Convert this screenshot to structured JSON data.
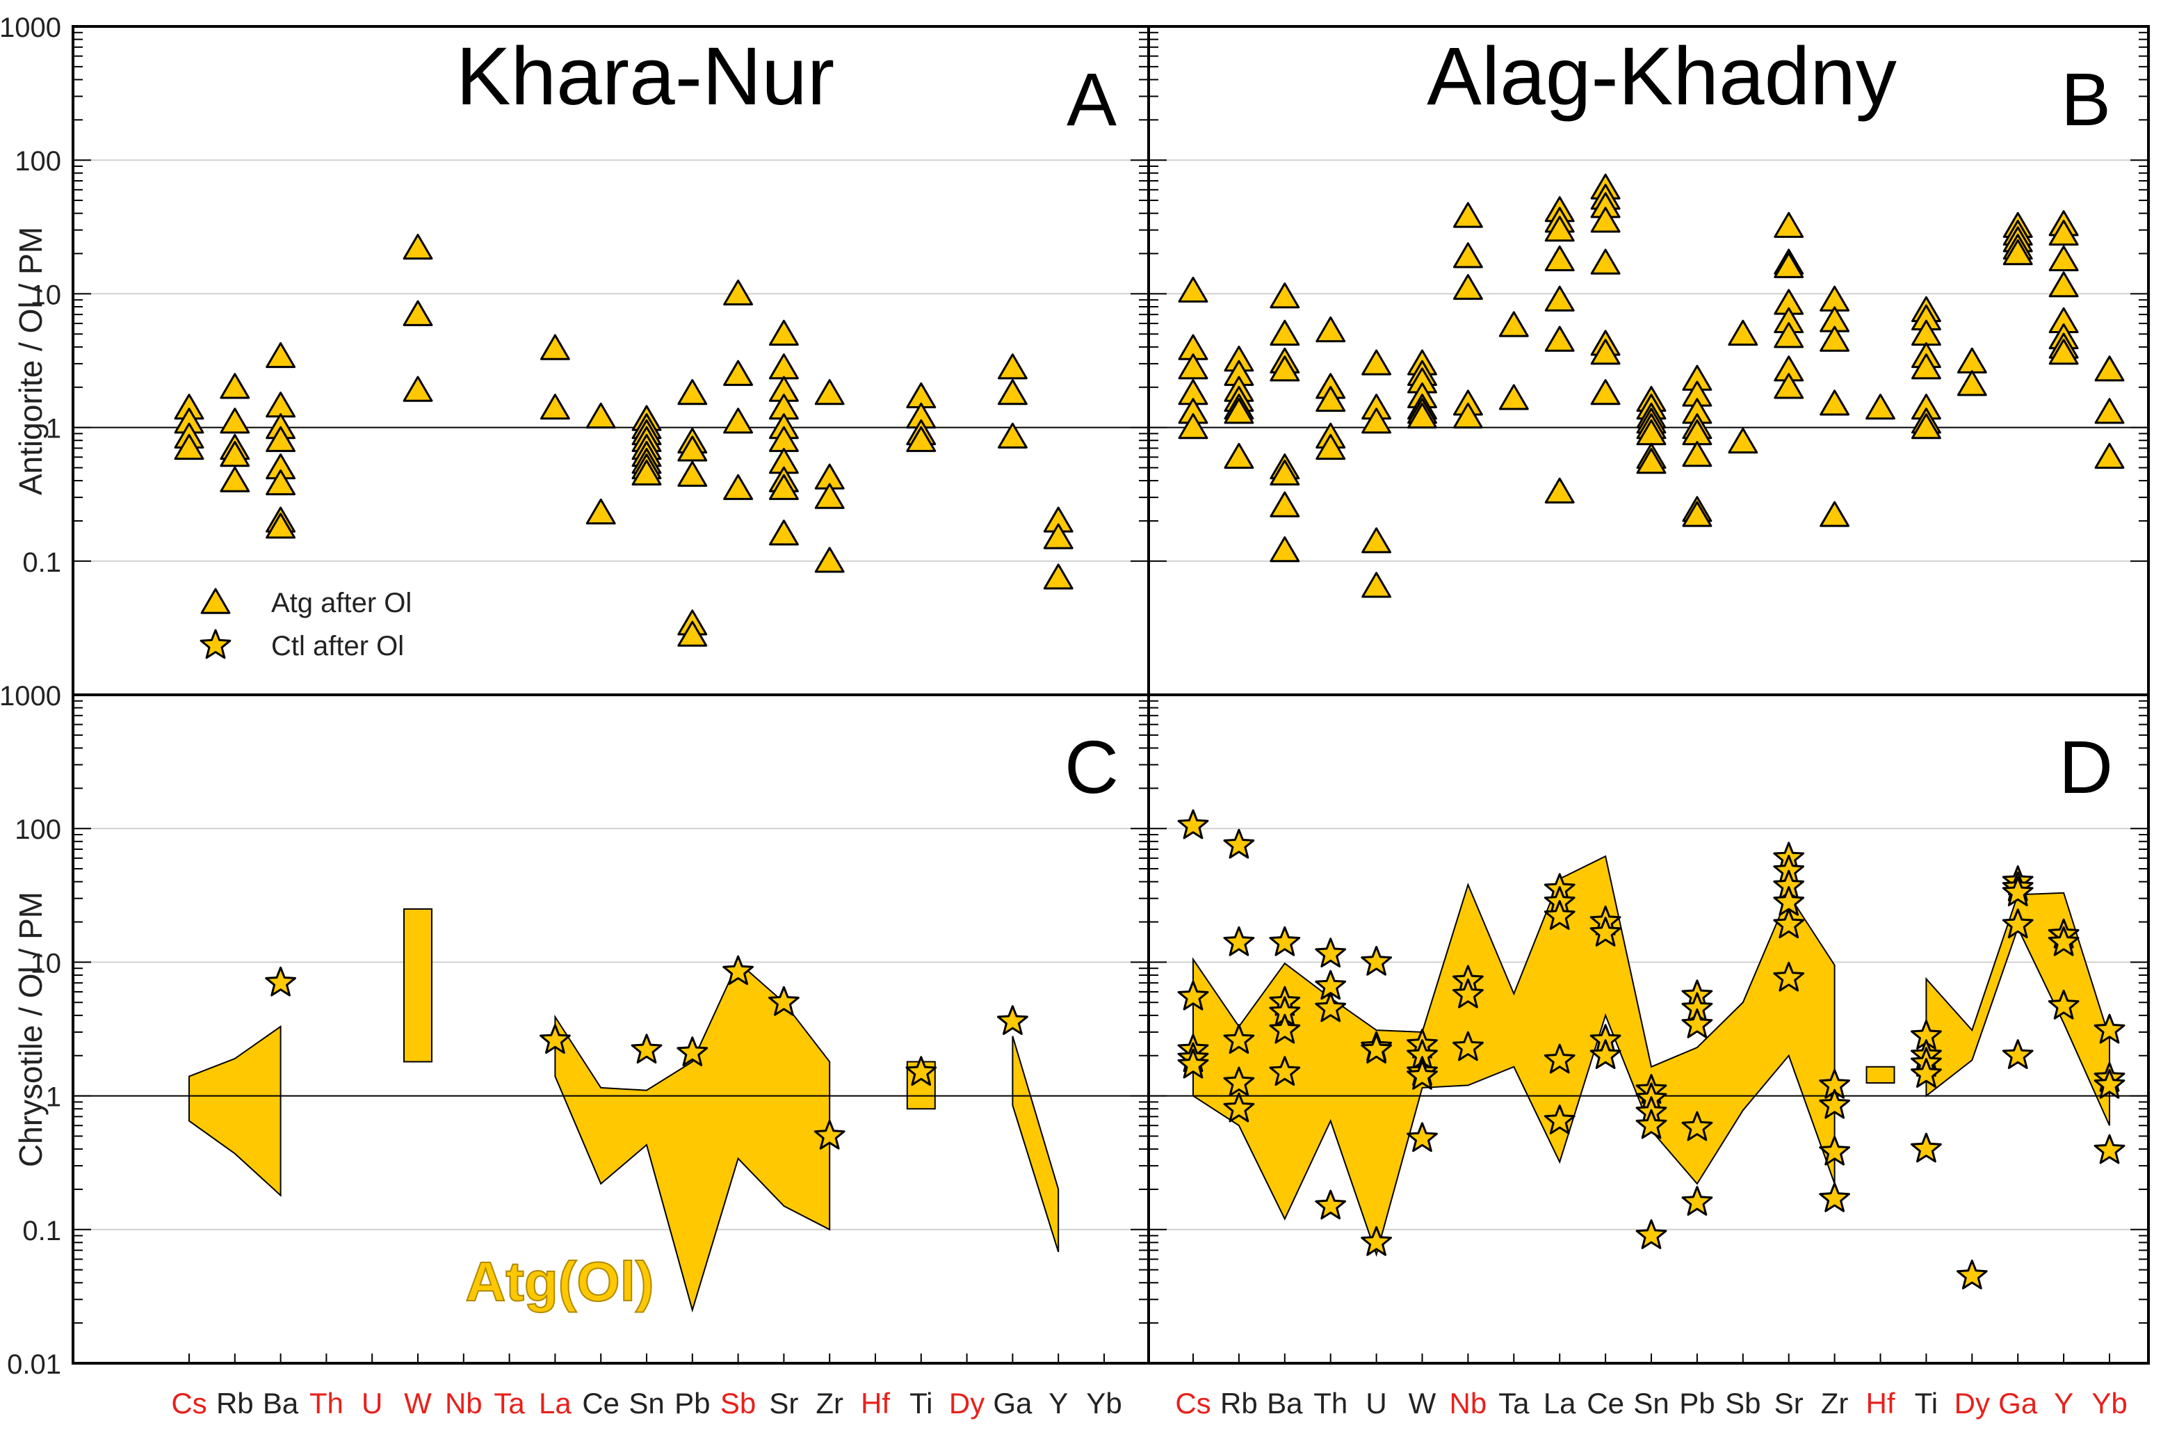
{
  "colors": {
    "marker_fill": "#FFC800",
    "marker_stroke": "#000000",
    "envelope_fill": "#FFC800",
    "envelope_stroke": "#000000",
    "red_label": "#E8201B",
    "black_label": "#222222",
    "grid": "#D0D0D0"
  },
  "y_ticks_top": [
    "1000",
    "100",
    "10",
    "1",
    "0.1"
  ],
  "y_ticks_bottom": [
    "1000",
    "100",
    "10",
    "1",
    "0.1",
    "0.01"
  ],
  "chart_data": [
    {
      "panel": "A",
      "type": "scatter",
      "title": "Khara-Nur",
      "ylabel": "Antigorite / Ol / PM",
      "yscale": "log",
      "ylim": [
        0.01,
        1000
      ],
      "categories": [
        "Cs",
        "Rb",
        "Ba",
        "Th",
        "U",
        "W",
        "Nb",
        "Ta",
        "La",
        "Ce",
        "Sn",
        "Pb",
        "Sb",
        "Sr",
        "Zr",
        "Hf",
        "Ti",
        "Dy",
        "Ga",
        "Y",
        "Yb"
      ],
      "legend": [
        {
          "label": "Atg after Ol",
          "marker": "triangle"
        },
        {
          "label": "Ctl after Ol",
          "marker": "star"
        }
      ],
      "legend_position": "bottom-left",
      "series": [
        {
          "marker": "triangle",
          "points": {
            "Cs": [
              1.4,
              1.1,
              0.85,
              0.7
            ],
            "Rb": [
              2.0,
              1.1,
              0.7,
              0.62,
              0.4
            ],
            "Ba": [
              3.4,
              1.45,
              1.0,
              0.8,
              0.5,
              0.38,
              0.2,
              0.18
            ],
            "W": [
              22,
              7,
              1.9
            ],
            "La": [
              3.9,
              1.4
            ],
            "Ce": [
              1.2,
              0.23
            ],
            "Sn": [
              1.15,
              1.0,
              0.9,
              0.8,
              0.7,
              0.62,
              0.55,
              0.5,
              0.45
            ],
            "Pb": [
              1.8,
              0.78,
              0.68,
              0.44,
              0.034,
              0.028
            ],
            "Sb": [
              10,
              2.5,
              1.1,
              0.35
            ],
            "Sr": [
              5.0,
              2.8,
              1.9,
              1.4,
              1.0,
              0.8,
              0.55,
              0.4,
              0.35,
              0.16
            ],
            "Zr": [
              1.8,
              0.42,
              0.3,
              0.1
            ],
            "Ti": [
              1.7,
              1.2,
              0.9,
              0.8
            ],
            "Ga": [
              2.8,
              1.8,
              0.85
            ],
            "Y": [
              0.2,
              0.15,
              0.075
            ]
          }
        }
      ]
    },
    {
      "panel": "B",
      "type": "scatter",
      "title": "Alag-Khadny",
      "yscale": "log",
      "ylim": [
        0.01,
        1000
      ],
      "categories": [
        "Cs",
        "Rb",
        "Ba",
        "Th",
        "U",
        "W",
        "Nb",
        "Ta",
        "La",
        "Ce",
        "Sn",
        "Pb",
        "Sb",
        "Sr",
        "Zr",
        "Hf",
        "Ti",
        "Dy",
        "Ga",
        "Y",
        "Yb"
      ],
      "series": [
        {
          "marker": "triangle",
          "points": {
            "Cs": [
              10.5,
              3.9,
              2.8,
              1.8,
              1.3,
              1.0
            ],
            "Rb": [
              3.2,
              2.5,
              1.9,
              1.6,
              1.4,
              1.3,
              0.6
            ],
            "Ba": [
              9.5,
              5.0,
              3.1,
              2.7,
              0.5,
              0.45,
              0.26,
              0.12
            ],
            "Th": [
              5.3,
              2.0,
              1.6,
              0.85,
              0.7
            ],
            "U": [
              3.0,
              1.4,
              1.1,
              0.14,
              0.065
            ],
            "W": [
              3.0,
              2.5,
              2.2,
              1.7,
              1.4,
              1.3,
              1.2
            ],
            "Nb": [
              38,
              19,
              11,
              1.5,
              1.2
            ],
            "Ta": [
              5.8,
              1.65
            ],
            "La": [
              42,
              35,
              30,
              18,
              9,
              4.5,
              0.33
            ],
            "Ce": [
              62,
              52,
              45,
              35,
              17,
              4.2,
              3.6,
              1.8
            ],
            "Sn": [
              1.6,
              1.4,
              1.2,
              1.1,
              1.0,
              0.9,
              0.6,
              0.55
            ],
            "Pb": [
              2.3,
              1.75,
              1.3,
              1.0,
              0.9,
              0.62,
              0.24,
              0.22
            ],
            "Sb": [
              5.0,
              0.78
            ],
            "Sr": [
              32,
              17,
              16,
              8.5,
              6.2,
              4.8,
              2.7,
              2.0
            ],
            "Zr": [
              9.0,
              6.3,
              4.5,
              1.5,
              0.22
            ],
            "Hf": [
              1.4
            ],
            "Ti": [
              7.5,
              6.5,
              5.0,
              3.4,
              2.8,
              1.4,
              1.1,
              1.0
            ],
            "Dy": [
              3.1,
              2.1
            ],
            "Ga": [
              32,
              28,
              25,
              22,
              20
            ],
            "Y": [
              33,
              28,
              18,
              11.5,
              6.2,
              4.7,
              4.0,
              3.6
            ],
            "Yb": [
              2.7,
              1.3,
              0.6
            ]
          }
        }
      ]
    },
    {
      "panel": "C",
      "type": "scatter",
      "ylabel": "Chrysotile / Ol / PM",
      "yscale": "log",
      "ylim": [
        0.01,
        1000
      ],
      "categories": [
        "Cs",
        "Rb",
        "Ba",
        "Th",
        "U",
        "W",
        "Nb",
        "Ta",
        "La",
        "Ce",
        "Sn",
        "Pb",
        "Sb",
        "Sr",
        "Zr",
        "Hf",
        "Ti",
        "Dy",
        "Ga",
        "Y",
        "Yb"
      ],
      "annotation": "Atg(Ol)",
      "series": [
        {
          "marker": "star",
          "points": {
            "Ba": [
              7.0
            ],
            "La": [
              2.6
            ],
            "Sn": [
              2.2
            ],
            "Pb": [
              2.1
            ],
            "Sb": [
              8.5
            ],
            "Sr": [
              5.0
            ],
            "Zr": [
              0.5
            ],
            "Ti": [
              1.5
            ],
            "Ga": [
              3.6
            ]
          }
        }
      ],
      "envelopes": [
        {
          "top": [
            [
              "Cs",
              1.4
            ],
            [
              "Rb",
              1.9
            ],
            [
              "Ba",
              3.3
            ]
          ],
          "bottom": [
            [
              "Cs",
              0.65
            ],
            [
              "Rb",
              0.37
            ],
            [
              "Ba",
              0.18
            ]
          ]
        },
        {
          "top": [
            [
              "W",
              25
            ]
          ],
          "bottom": [
            [
              "W",
              1.8
            ]
          ]
        },
        {
          "top": [
            [
              "La",
              3.9
            ],
            [
              "Ce",
              1.15
            ],
            [
              "Sn",
              1.1
            ],
            [
              "Pb",
              1.8
            ],
            [
              "Sb",
              10
            ],
            [
              "Sr",
              5.0
            ],
            [
              "Zr",
              1.8
            ]
          ],
          "bottom": [
            [
              "La",
              1.4
            ],
            [
              "Ce",
              0.22
            ],
            [
              "Sn",
              0.43
            ],
            [
              "Pb",
              0.025
            ],
            [
              "Sb",
              0.34
            ],
            [
              "Sr",
              0.15
            ],
            [
              "Zr",
              0.1
            ]
          ]
        },
        {
          "top": [
            [
              "Ti",
              1.8
            ]
          ],
          "bottom": [
            [
              "Ti",
              0.8
            ]
          ]
        },
        {
          "top": [
            [
              "Ga",
              2.8
            ],
            [
              "Y",
              0.2
            ]
          ],
          "bottom": [
            [
              "Ga",
              0.85
            ],
            [
              "Y",
              0.068
            ]
          ]
        }
      ]
    },
    {
      "panel": "D",
      "type": "scatter",
      "yscale": "log",
      "ylim": [
        0.01,
        1000
      ],
      "categories": [
        "Cs",
        "Rb",
        "Ba",
        "Th",
        "U",
        "W",
        "Nb",
        "Ta",
        "La",
        "Ce",
        "Sn",
        "Pb",
        "Sb",
        "Sr",
        "Zr",
        "Hf",
        "Ti",
        "Dy",
        "Ga",
        "Y",
        "Yb"
      ],
      "series": [
        {
          "marker": "star",
          "points": {
            "Cs": [
              105,
              5.5,
              2.2,
              1.9,
              1.7
            ],
            "Rb": [
              75,
              14,
              2.6,
              1.25,
              0.8
            ],
            "Ba": [
              14,
              5.0,
              4.2,
              3.1,
              1.5
            ],
            "Th": [
              11.5,
              6.6,
              4.5,
              0.15
            ],
            "U": [
              10,
              2.3,
              2.2,
              0.08
            ],
            "W": [
              2.4,
              2.0,
              1.5,
              1.4,
              0.48
            ],
            "Nb": [
              7.2,
              5.7,
              2.3
            ],
            "La": [
              35,
              28,
              22,
              1.85,
              0.65
            ],
            "Ce": [
              20,
              16.5,
              2.6,
              2.0
            ],
            "Sn": [
              1.1,
              0.95,
              0.75,
              0.6,
              0.09
            ],
            "Pb": [
              5.6,
              4.5,
              3.4,
              0.58,
              0.16
            ],
            "Sr": [
              60,
              48,
              37,
              28,
              19,
              7.6
            ],
            "Zr": [
              1.2,
              0.85,
              0.38,
              0.17
            ],
            "Ti": [
              2.8,
              2.0,
              1.75,
              1.45,
              0.4
            ],
            "Dy": [
              0.045
            ],
            "Ga": [
              40,
              36,
              33,
              19,
              2.0
            ],
            "Y": [
              16,
              14,
              4.7
            ],
            "Yb": [
              3.1,
              1.35,
              1.2,
              0.39
            ]
          }
        }
      ],
      "envelopes": [
        {
          "top": [
            [
              "Cs",
              10.5
            ],
            [
              "Rb",
              3.3
            ],
            [
              "Ba",
              9.8
            ],
            [
              "Th",
              5.4
            ],
            [
              "U",
              3.1
            ],
            [
              "W",
              3.0
            ],
            [
              "Nb",
              38
            ],
            [
              "Ta",
              5.8
            ],
            [
              "La",
              42
            ],
            [
              "Ce",
              62
            ],
            [
              "Sn",
              1.65
            ],
            [
              "Pb",
              2.3
            ],
            [
              "Sb",
              5.0
            ],
            [
              "Sr",
              32
            ],
            [
              "Zr",
              9.5
            ]
          ],
          "bottom": [
            [
              "Cs",
              1.0
            ],
            [
              "Rb",
              0.6
            ],
            [
              "Ba",
              0.12
            ],
            [
              "Th",
              0.65
            ],
            [
              "U",
              0.065
            ],
            [
              "W",
              1.15
            ],
            [
              "Nb",
              1.2
            ],
            [
              "Ta",
              1.65
            ],
            [
              "La",
              0.32
            ],
            [
              "Ce",
              4.0
            ],
            [
              "Sn",
              0.55
            ],
            [
              "Pb",
              0.22
            ],
            [
              "Sb",
              0.78
            ],
            [
              "Sr",
              2.0
            ],
            [
              "Zr",
              0.22
            ]
          ]
        },
        {
          "top": [
            [
              "Hf",
              1.65
            ]
          ],
          "bottom": [
            [
              "Hf",
              1.25
            ]
          ]
        },
        {
          "top": [
            [
              "Ti",
              7.5
            ],
            [
              "Dy",
              3.1
            ],
            [
              "Ga",
              32
            ],
            [
              "Y",
              33
            ],
            [
              "Yb",
              2.7
            ]
          ],
          "bottom": [
            [
              "Ti",
              1.0
            ],
            [
              "Dy",
              1.85
            ],
            [
              "Ga",
              18
            ],
            [
              "Y",
              3.5
            ],
            [
              "Yb",
              0.6
            ]
          ]
        }
      ]
    }
  ],
  "panel_letters": [
    "A",
    "B",
    "C",
    "D"
  ],
  "x_categories": [
    {
      "label": "Cs",
      "red": true
    },
    {
      "label": "Rb",
      "red": false
    },
    {
      "label": "Ba",
      "red": false
    },
    {
      "label": "Th",
      "red": true
    },
    {
      "label": "U",
      "red": true
    },
    {
      "label": "W",
      "red": true
    },
    {
      "label": "Nb",
      "red": true
    },
    {
      "label": "Ta",
      "red": true
    },
    {
      "label": "La",
      "red": true
    },
    {
      "label": "Ce",
      "red": false
    },
    {
      "label": "Sn",
      "red": false
    },
    {
      "label": "Pb",
      "red": false
    },
    {
      "label": "Sb",
      "red": true
    },
    {
      "label": "Sr",
      "red": false
    },
    {
      "label": "Zr",
      "red": false
    },
    {
      "label": "Hf",
      "red": true
    },
    {
      "label": "Ti",
      "red": false
    },
    {
      "label": "Dy",
      "red": true
    },
    {
      "label": "Ga",
      "red": false
    },
    {
      "label": "Y",
      "red": false
    },
    {
      "label": "Yb",
      "red": false
    }
  ],
  "x_categories_right": [
    {
      "label": "Cs",
      "red": true
    },
    {
      "label": "Rb",
      "red": false
    },
    {
      "label": "Ba",
      "red": false
    },
    {
      "label": "Th",
      "red": false
    },
    {
      "label": "U",
      "red": false
    },
    {
      "label": "W",
      "red": false
    },
    {
      "label": "Nb",
      "red": true
    },
    {
      "label": "Ta",
      "red": false
    },
    {
      "label": "La",
      "red": false
    },
    {
      "label": "Ce",
      "red": false
    },
    {
      "label": "Sn",
      "red": false
    },
    {
      "label": "Pb",
      "red": false
    },
    {
      "label": "Sb",
      "red": false
    },
    {
      "label": "Sr",
      "red": false
    },
    {
      "label": "Zr",
      "red": false
    },
    {
      "label": "Hf",
      "red": true
    },
    {
      "label": "Ti",
      "red": false
    },
    {
      "label": "Dy",
      "red": true
    },
    {
      "label": "Ga",
      "red": true
    },
    {
      "label": "Y",
      "red": true
    },
    {
      "label": "Yb",
      "red": true
    }
  ]
}
